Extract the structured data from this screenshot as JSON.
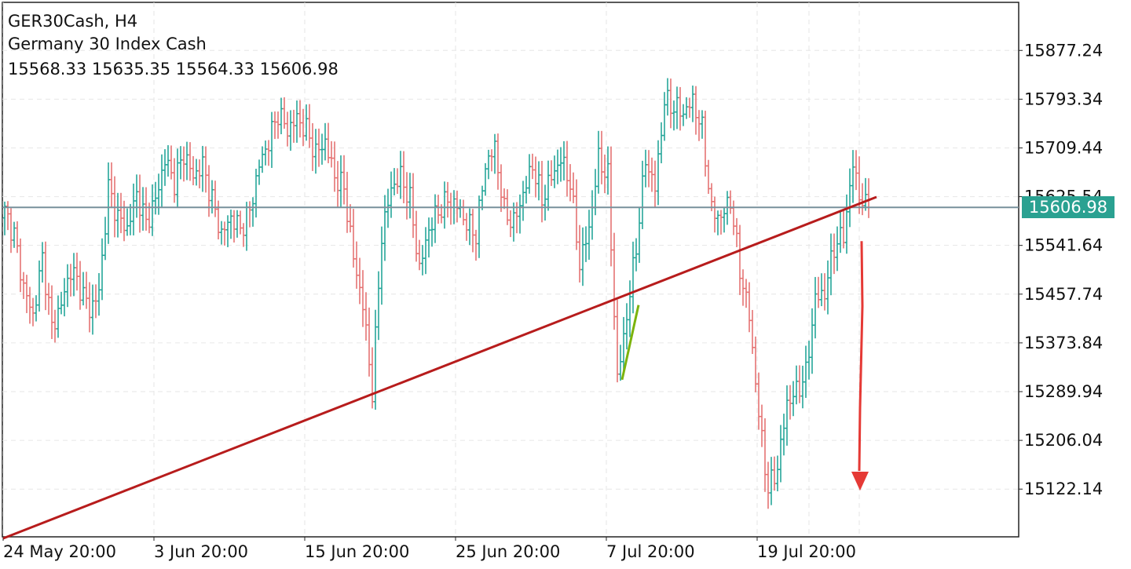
{
  "header": {
    "symbol_line": "GER30Cash, H4",
    "description": "Germany 30 Index Cash",
    "ohlc_line": "15568.33 15635.35 15564.33 15606.98"
  },
  "current_price_label": "15606.98",
  "colors": {
    "bull": "#26a69a",
    "bear": "#e57373",
    "trendline": "#b71c1c",
    "green_line": "#7cb30c",
    "arrow": "#e53935",
    "price_line": "#78909c",
    "price_tag": "#2aa191",
    "grid": "#e6e6e6"
  },
  "chart_data": {
    "type": "ohlc",
    "symbol": "GER30Cash",
    "timeframe": "H4",
    "ylim": [
      15040,
      15960
    ],
    "y_ticks": [
      "15877.24",
      "15793.34",
      "15709.44",
      "15625.54",
      "15541.64",
      "15457.74",
      "15373.84",
      "15289.94",
      "15206.04",
      "15122.14"
    ],
    "y_tick_values": [
      15877.24,
      15793.34,
      15709.44,
      15625.54,
      15541.64,
      15457.74,
      15373.84,
      15289.94,
      15206.04,
      15122.14
    ],
    "x_ticks": [
      "24 May 20:00",
      "3 Jun 20:00",
      "15 Jun 20:00",
      "25 Jun 20:00",
      "7 Jul 20:00",
      "19 Jul 20:00"
    ],
    "x_tick_bar_index": [
      0,
      48,
      96,
      144,
      192,
      240
    ],
    "grid": true,
    "last_price": 15606.98,
    "anchors": [
      [
        0,
        15600
      ],
      [
        3,
        15560
      ],
      [
        6,
        15470
      ],
      [
        9,
        15420
      ],
      [
        12,
        15520
      ],
      [
        15,
        15400
      ],
      [
        18,
        15440
      ],
      [
        21,
        15500
      ],
      [
        24,
        15470
      ],
      [
        27,
        15430
      ],
      [
        30,
        15460
      ],
      [
        33,
        15640
      ],
      [
        36,
        15590
      ],
      [
        39,
        15570
      ],
      [
        42,
        15630
      ],
      [
        45,
        15580
      ],
      [
        48,
        15620
      ],
      [
        51,
        15690
      ],
      [
        54,
        15650
      ],
      [
        57,
        15700
      ],
      [
        60,
        15660
      ],
      [
        63,
        15680
      ],
      [
        66,
        15620
      ],
      [
        69,
        15560
      ],
      [
        72,
        15590
      ],
      [
        75,
        15570
      ],
      [
        78,
        15600
      ],
      [
        81,
        15680
      ],
      [
        84,
        15720
      ],
      [
        87,
        15770
      ],
      [
        90,
        15740
      ],
      [
        93,
        15760
      ],
      [
        96,
        15740
      ],
      [
        99,
        15700
      ],
      [
        102,
        15720
      ],
      [
        105,
        15660
      ],
      [
        108,
        15640
      ],
      [
        111,
        15520
      ],
      [
        114,
        15440
      ],
      [
        117,
        15290
      ],
      [
        120,
        15560
      ],
      [
        123,
        15640
      ],
      [
        126,
        15660
      ],
      [
        129,
        15620
      ],
      [
        132,
        15500
      ],
      [
        135,
        15570
      ],
      [
        138,
        15600
      ],
      [
        141,
        15620
      ],
      [
        144,
        15610
      ],
      [
        147,
        15580
      ],
      [
        150,
        15560
      ],
      [
        153,
        15680
      ],
      [
        156,
        15710
      ],
      [
        159,
        15600
      ],
      [
        162,
        15580
      ],
      [
        165,
        15630
      ],
      [
        168,
        15680
      ],
      [
        171,
        15620
      ],
      [
        174,
        15660
      ],
      [
        177,
        15690
      ],
      [
        180,
        15650
      ],
      [
        183,
        15510
      ],
      [
        186,
        15570
      ],
      [
        189,
        15690
      ],
      [
        192,
        15660
      ],
      [
        195,
        15310
      ],
      [
        198,
        15420
      ],
      [
        201,
        15540
      ],
      [
        204,
        15690
      ],
      [
        207,
        15640
      ],
      [
        210,
        15790
      ],
      [
        213,
        15780
      ],
      [
        216,
        15770
      ],
      [
        219,
        15790
      ],
      [
        222,
        15740
      ],
      [
        225,
        15600
      ],
      [
        228,
        15590
      ],
      [
        231,
        15620
      ],
      [
        234,
        15500
      ],
      [
        237,
        15420
      ],
      [
        240,
        15250
      ],
      [
        243,
        15120
      ],
      [
        246,
        15160
      ],
      [
        249,
        15270
      ],
      [
        252,
        15290
      ],
      [
        255,
        15320
      ],
      [
        258,
        15450
      ],
      [
        261,
        15460
      ],
      [
        264,
        15540
      ],
      [
        267,
        15560
      ],
      [
        270,
        15680
      ],
      [
        273,
        15610
      ],
      [
        275,
        15610
      ]
    ],
    "annotations": [
      {
        "type": "trendline",
        "from": [
          0,
          15040
        ],
        "to": [
          275,
          15625
        ]
      },
      {
        "type": "segment",
        "from": [
          195,
          15305
        ],
        "to": [
          200,
          15420
        ]
      },
      {
        "type": "arrow_down",
        "from": [
          276,
          15530
        ],
        "to": [
          276,
          15110
        ]
      },
      {
        "type": "horizontal_line",
        "y": 15606.98
      }
    ]
  }
}
